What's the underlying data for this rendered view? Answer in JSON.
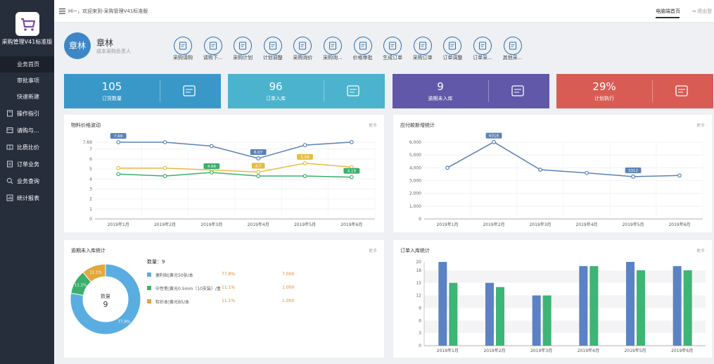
{
  "app": {
    "name": "采购管理V41标准版",
    "welcome": "Hi~，欢迎来到-采购管理V41标准版"
  },
  "sidebar": {
    "items": [
      {
        "label": "业务首页",
        "icon": "none"
      },
      {
        "label": "审批事项",
        "icon": "none"
      },
      {
        "label": "快速新建",
        "icon": "none"
      },
      {
        "label": "操作指引",
        "icon": "book-icon"
      },
      {
        "label": "请购与...",
        "icon": "cart-icon"
      },
      {
        "label": "比质比价",
        "icon": "compare-icon"
      },
      {
        "label": "订单业务",
        "icon": "order-icon"
      },
      {
        "label": "业务查询",
        "icon": "search-icon"
      },
      {
        "label": "统计报表",
        "icon": "report-icon"
      }
    ]
  },
  "topbar": {
    "home_tab": "电脑端首页",
    "logout": "退出登"
  },
  "user": {
    "avatar": "章林",
    "name": "章林",
    "role": "成本采购负责人"
  },
  "quick": [
    {
      "label": "采购请购",
      "icon": "requisition-icon"
    },
    {
      "label": "请购下...",
      "icon": "cart-down-icon"
    },
    {
      "label": "采购计划",
      "icon": "plan-icon"
    },
    {
      "label": "计划调整",
      "icon": "adjust-icon"
    },
    {
      "label": "采购询价",
      "icon": "inquiry-icon"
    },
    {
      "label": "采购询...",
      "icon": "inquiry2-icon"
    },
    {
      "label": "价格审批",
      "icon": "price-approve-icon"
    },
    {
      "label": "生成订单",
      "icon": "create-order-icon"
    },
    {
      "label": "采购订单",
      "icon": "purchase-order-icon"
    },
    {
      "label": "订单调整",
      "icon": "order-adjust-icon"
    },
    {
      "label": "订单采...",
      "icon": "order-purchase-icon"
    },
    {
      "label": "其他采...",
      "icon": "other-icon"
    }
  ],
  "stats": [
    {
      "value": "105",
      "label": "订货数量",
      "color": "#3a98c9",
      "icon": "boxes-icon"
    },
    {
      "value": "96",
      "label": "订单入库",
      "color": "#4bb3cd",
      "icon": "warehouse-icon"
    },
    {
      "value": "9",
      "label": "逾期未入库",
      "color": "#6258a9",
      "icon": "overdue-icon"
    },
    {
      "value": "29%",
      "label": "计划执行",
      "color": "#d95c54",
      "icon": "plan-exec-icon"
    }
  ],
  "cards": {
    "price": {
      "title": "物料价格波动",
      "more": "更多"
    },
    "payable": {
      "title": "应付款新增统计",
      "more": "更多"
    },
    "overdue": {
      "title": "逾期未入库统计",
      "more": "更多",
      "qty_label": "数量：9",
      "center_label": "数量",
      "center_value": "9"
    },
    "inbound": {
      "title": "订单入库统计",
      "more": "更多"
    }
  },
  "chart_data": [
    {
      "type": "line",
      "x": [
        "2019年1月",
        "2019年2月",
        "2019年3月",
        "2019年4月",
        "2019年5月",
        "2019年6月"
      ],
      "ylim": [
        0,
        7.69
      ],
      "yticks": [
        0,
        1,
        2,
        3,
        4,
        5,
        6,
        7,
        7.69
      ],
      "series": [
        {
          "values": [
            7.69,
            7.69,
            7.3,
            6.07,
            7.4,
            7.7
          ],
          "color": "#5b82b8",
          "labels": [
            "7.69",
            "",
            "",
            "6.07",
            "",
            ""
          ]
        },
        {
          "values": [
            5.1,
            5.1,
            4.9,
            4.7,
            5.58,
            5.2
          ],
          "color": "#e8bc3f",
          "labels": [
            "",
            "",
            "",
            "4.7",
            "5.58",
            ""
          ]
        },
        {
          "values": [
            4.5,
            4.3,
            4.66,
            4.3,
            4.3,
            4.19
          ],
          "color": "#3caf6b",
          "labels": [
            "",
            "",
            "4.66",
            "",
            "",
            "4.19"
          ]
        }
      ],
      "grid": true
    },
    {
      "type": "line",
      "x": [
        "2019年1月",
        "2019年2月",
        "2019年3月",
        "2019年4月",
        "2019年5月",
        "2019年6月"
      ],
      "ylim": [
        0,
        6000
      ],
      "yticks": [
        0,
        1000,
        2000,
        3000,
        4000,
        5000,
        6000
      ],
      "ytick_labels": [
        "0",
        "1,000",
        "2,000",
        "3,000",
        "4,000",
        "5,000",
        "6,000"
      ],
      "series": [
        {
          "values": [
            4000,
            6018,
            3850,
            3600,
            3312,
            3400
          ],
          "color": "#5b82b8",
          "labels": [
            "",
            "6018",
            "",
            "",
            "3312",
            ""
          ]
        }
      ],
      "grid": true
    },
    {
      "type": "pie",
      "donut": true,
      "slices": [
        {
          "name": "便利贴|黄光50张/本",
          "value": 7,
          "percent": "77.8%",
          "amount": "7.000",
          "color": "#5aade0"
        },
        {
          "name": "中性笔|黄光0.5mm（10支装）/盒",
          "value": 1,
          "percent": "11.1%",
          "amount": "1.000",
          "color": "#3caf6b"
        },
        {
          "name": "软抄本|黄光B5/本",
          "value": 1,
          "percent": "11.1%",
          "amount": "1.000",
          "color": "#e0a83f"
        }
      ]
    },
    {
      "type": "bar",
      "categories": [
        "2019年1月",
        "2019年2月",
        "2019年3月",
        "2019年4月",
        "2019年5月",
        "2019年6月"
      ],
      "ylim": [
        0,
        20
      ],
      "yticks": [
        0,
        3,
        6,
        9,
        12,
        15,
        18,
        20
      ],
      "series": [
        {
          "values": [
            20,
            15,
            12,
            19,
            20,
            19
          ],
          "color": "#5b82c4"
        },
        {
          "values": [
            15,
            14,
            12,
            19,
            18,
            18
          ],
          "color": "#3db575"
        }
      ],
      "grid": true
    }
  ]
}
